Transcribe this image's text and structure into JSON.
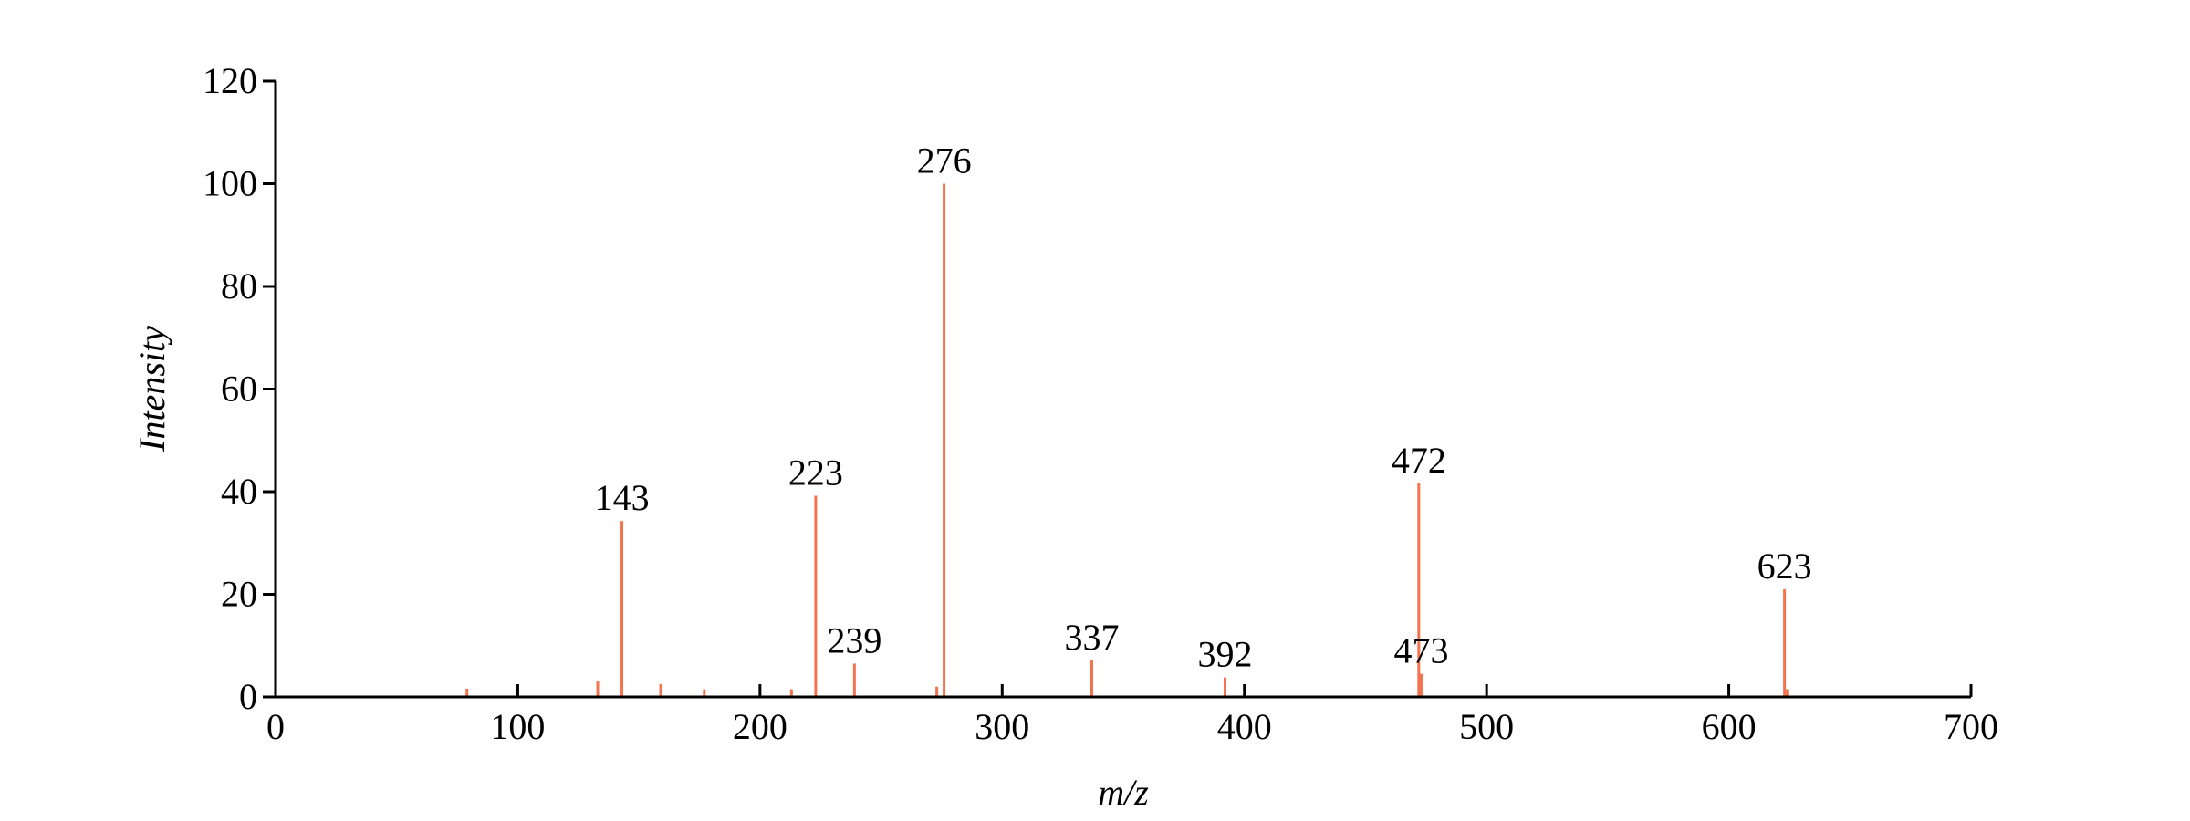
{
  "chart_data": {
    "type": "stem",
    "xlabel": "m/z",
    "ylabel": "Intensity",
    "x": [
      79,
      133,
      143,
      159,
      177,
      213,
      223,
      239,
      273,
      276,
      337,
      392,
      472,
      473,
      623,
      624
    ],
    "series": [
      {
        "color": "#f4734f",
        "values": [
          1.6,
          3,
          34.3,
          2.5,
          1.5,
          1.5,
          39.2,
          6.5,
          2,
          100,
          7.1,
          3.8,
          41.6,
          4.5,
          21,
          1.5
        ],
        "peak_labels": [
          null,
          null,
          "143",
          null,
          null,
          null,
          "223",
          "239",
          null,
          "276",
          "337",
          "392",
          "472",
          "473",
          "623",
          null
        ]
      }
    ],
    "xlim": [
      0,
      700
    ],
    "xticks": [
      0,
      100,
      200,
      300,
      400,
      500,
      600,
      700
    ],
    "ylim": [
      0,
      120
    ],
    "yticks": [
      0,
      20,
      40,
      60,
      80,
      100,
      120
    ],
    "grid": false
  }
}
